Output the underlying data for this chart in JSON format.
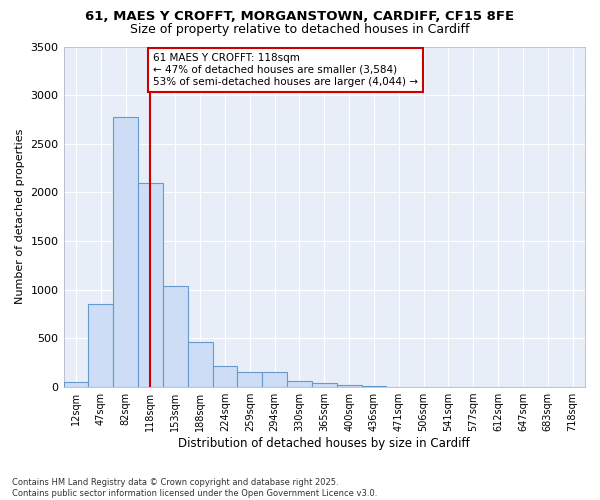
{
  "title_line1": "61, MAES Y CROFFT, MORGANSTOWN, CARDIFF, CF15 8FE",
  "title_line2": "Size of property relative to detached houses in Cardiff",
  "xlabel": "Distribution of detached houses by size in Cardiff",
  "ylabel": "Number of detached properties",
  "categories": [
    "12sqm",
    "47sqm",
    "82sqm",
    "118sqm",
    "153sqm",
    "188sqm",
    "224sqm",
    "259sqm",
    "294sqm",
    "330sqm",
    "365sqm",
    "400sqm",
    "436sqm",
    "471sqm",
    "506sqm",
    "541sqm",
    "577sqm",
    "612sqm",
    "647sqm",
    "683sqm",
    "718sqm"
  ],
  "values": [
    55,
    850,
    2780,
    2100,
    1035,
    460,
    215,
    150,
    150,
    65,
    45,
    25,
    15,
    5,
    2,
    0,
    0,
    0,
    0,
    0,
    0
  ],
  "bar_color": "#ccddf5",
  "bar_edge_color": "#6699cc",
  "highlight_bar_index": 3,
  "highlight_line_color": "#cc0000",
  "annotation_line1": "61 MAES Y CROFFT: 118sqm",
  "annotation_line2": "← 47% of detached houses are smaller (3,584)",
  "annotation_line3": "53% of semi-detached houses are larger (4,044) →",
  "annotation_box_color": "#cc0000",
  "ylim": [
    0,
    3500
  ],
  "yticks": [
    0,
    500,
    1000,
    1500,
    2000,
    2500,
    3000,
    3500
  ],
  "fig_bg_color": "#ffffff",
  "plot_bg_color": "#e8eef8",
  "grid_color": "#ffffff",
  "footnote": "Contains HM Land Registry data © Crown copyright and database right 2025.\nContains public sector information licensed under the Open Government Licence v3.0."
}
